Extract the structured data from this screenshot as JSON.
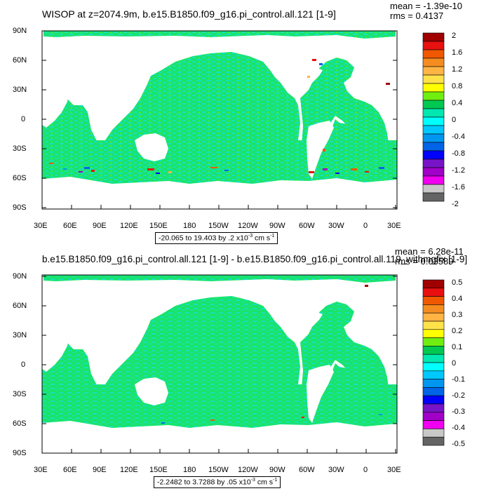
{
  "panels": [
    {
      "title": "WISOP at z=2074.9m, b.e15.B1850.f09_g16.pi_control.all.121 [1-9]",
      "stats": {
        "mean": "mean = -1.39e-10",
        "rms": "rms = 0.4137"
      },
      "lat_labels": [
        "90N",
        "60N",
        "30N",
        "0",
        "30S",
        "60S",
        "90S"
      ],
      "lon_labels": [
        "30E",
        "60E",
        "90E",
        "120E",
        "150E",
        "180",
        "150W",
        "120W",
        "90W",
        "60W",
        "30W",
        "0",
        "30E"
      ],
      "colorbar_labels": [
        "2",
        "1.6",
        "1.2",
        "0.8",
        "0.4",
        "0",
        "-0.4",
        "-0.8",
        "-1.2",
        "-1.6",
        "-2"
      ],
      "range_text": {
        "prefix": "-20.065 to 19.403 by .2 x10",
        "exp": "-3",
        "unit": " cm s",
        "unit_exp": "-1"
      }
    },
    {
      "title": "b.e15.B1850.f09_g16.pi_control.all.121 [1-9] - b.e15.B1850.f09_g16.pi_control.all.119_withmgfix [1-9]",
      "stats": {
        "mean": "mean = 6.28e-11",
        "rms": "rms = 0.03589"
      },
      "lat_labels": [
        "90N",
        "60N",
        "30N",
        "0",
        "30S",
        "60S",
        "90S"
      ],
      "lon_labels": [
        "30E",
        "60E",
        "90E",
        "120E",
        "150E",
        "180",
        "150W",
        "120W",
        "90W",
        "60W",
        "30W",
        "0",
        "30E"
      ],
      "colorbar_labels": [
        "0.5",
        "0.4",
        "0.3",
        "0.2",
        "0.1",
        "0",
        "-0.1",
        "-0.2",
        "-0.3",
        "-0.4",
        "-0.5"
      ],
      "range_text": {
        "prefix": "-2.2482 to 3.7288 by .05 x10",
        "exp": "-3",
        "unit": " cm s",
        "unit_exp": "-1"
      }
    }
  ],
  "colorbar_colors": [
    "#a00000",
    "#e81010",
    "#f05800",
    "#f58c20",
    "#ffb444",
    "#ffe24a",
    "#ffff00",
    "#70ee10",
    "#00c850",
    "#00e8b0",
    "#00ffff",
    "#00c8ff",
    "#0096f0",
    "#0064e6",
    "#0000ff",
    "#7814c8",
    "#a000c8",
    "#f000f0",
    "#c8c8c8",
    "#646464"
  ],
  "colors": {
    "ocean_main": "#1be36a",
    "ocean_alt": "#12e2bc",
    "land": "#ffffff"
  }
}
